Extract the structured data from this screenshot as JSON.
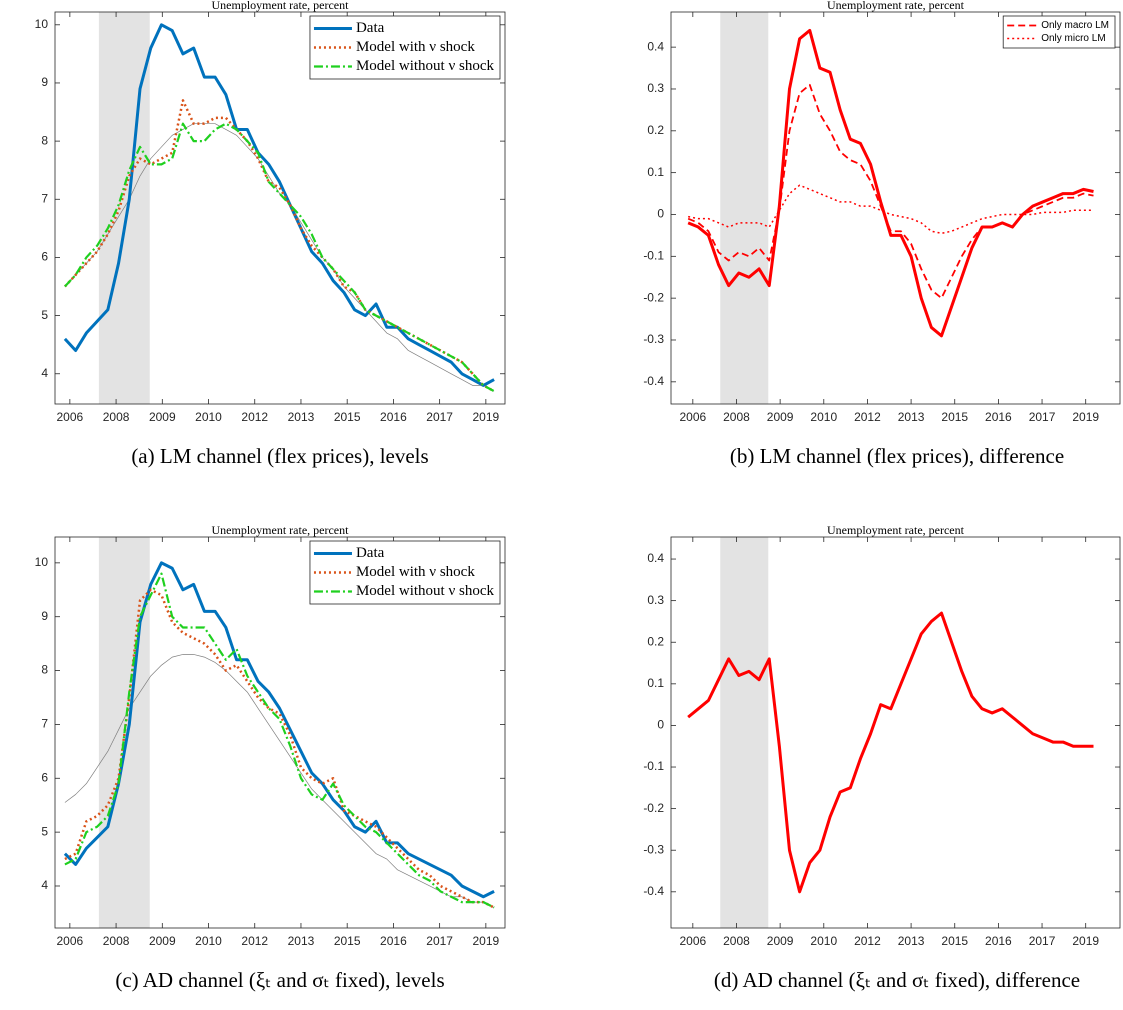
{
  "chart_data": [
    {
      "type": "line",
      "title": "Unemployment rate, percent",
      "caption": "(a) LM channel (flex prices), levels",
      "x": [
        2006.55,
        2006.875,
        2007.2,
        2007.525,
        2007.85,
        2008.175,
        2008.5,
        2008.825,
        2009.15,
        2009.475,
        2009.8,
        2010.125,
        2010.45,
        2010.775,
        2011.1,
        2011.425,
        2011.75,
        2012.075,
        2012.4,
        2012.725,
        2013.05,
        2013.375,
        2013.7,
        2014.025,
        2014.35,
        2014.675,
        2015.0,
        2015.325,
        2015.65,
        2015.975,
        2016.3,
        2016.625,
        2016.95,
        2017.275,
        2017.6,
        2017.925,
        2018.25,
        2018.575,
        2018.9,
        2019.225,
        2019.55
      ],
      "series": [
        {
          "values": [
            5.5,
            5.7,
            5.9,
            6.1,
            6.4,
            6.7,
            7.0,
            7.4,
            7.7,
            7.9,
            8.1,
            8.2,
            8.3,
            8.3,
            8.3,
            8.2,
            8.1,
            7.9,
            7.7,
            7.4,
            7.1,
            6.9,
            6.6,
            6.3,
            6.0,
            5.8,
            5.5,
            5.3,
            5.1,
            4.9,
            4.7,
            4.6,
            4.4,
            4.3,
            4.2,
            4.1,
            4.0,
            3.9,
            3.8,
            3.8,
            3.7
          ],
          "color": "#7f7f7f",
          "dash": "solid",
          "width": 0.7
        },
        {
          "name": "Data",
          "color": "#0072bd",
          "dash": "solid",
          "width": 3,
          "values": [
            4.6,
            4.4,
            4.7,
            4.9,
            5.1,
            5.9,
            7.0,
            8.9,
            9.6,
            10.0,
            9.9,
            9.5,
            9.6,
            9.1,
            9.1,
            8.8,
            8.2,
            8.2,
            7.8,
            7.6,
            7.3,
            6.9,
            6.5,
            6.1,
            5.9,
            5.6,
            5.4,
            5.1,
            5.0,
            5.2,
            4.8,
            4.8,
            4.6,
            4.5,
            4.4,
            4.3,
            4.2,
            4.0,
            3.9,
            3.8,
            3.9
          ]
        },
        {
          "name": "Model with ν shock",
          "color": "#d95319",
          "dash": "dot",
          "width": 2.5,
          "values": [
            5.5,
            5.7,
            5.9,
            6.1,
            6.4,
            6.8,
            7.4,
            7.7,
            7.6,
            7.7,
            7.8,
            8.7,
            8.3,
            8.3,
            8.4,
            8.4,
            8.2,
            8.0,
            7.7,
            7.3,
            7.2,
            6.9,
            6.5,
            6.2,
            6.0,
            5.8,
            5.5,
            5.4,
            5.1,
            5.0,
            4.9,
            4.8,
            4.7,
            4.6,
            4.5,
            4.4,
            4.3,
            4.2,
            4.0,
            3.8,
            3.7
          ]
        },
        {
          "name": "Model without ν shock",
          "color": "#1fd01f",
          "dash": "dashdot",
          "width": 2.2,
          "values": [
            5.5,
            5.7,
            6.0,
            6.2,
            6.5,
            6.9,
            7.5,
            7.9,
            7.6,
            7.6,
            7.7,
            8.3,
            8.0,
            8.0,
            8.2,
            8.3,
            8.2,
            8.0,
            7.8,
            7.3,
            7.1,
            6.9,
            6.7,
            6.4,
            6.0,
            5.8,
            5.6,
            5.4,
            5.1,
            5.0,
            4.9,
            4.8,
            4.7,
            4.6,
            4.5,
            4.4,
            4.3,
            4.2,
            4.0,
            3.8,
            3.7
          ]
        }
      ],
      "xlim": [
        2006.25,
        2019.88
      ],
      "ylim": [
        3.48,
        10.22
      ],
      "xticks": [
        {
          "value": 2006.7,
          "label": "2006"
        },
        {
          "value": 2008.1,
          "label": "2008"
        },
        {
          "value": 2009.5,
          "label": "2009"
        },
        {
          "value": 2010.9,
          "label": "2010"
        },
        {
          "value": 2012.3,
          "label": "2012"
        },
        {
          "value": 2013.7,
          "label": "2013"
        },
        {
          "value": 2015.1,
          "label": "2015"
        },
        {
          "value": 2016.5,
          "label": "2016"
        },
        {
          "value": 2017.9,
          "label": "2017"
        },
        {
          "value": 2019.3,
          "label": "2019"
        }
      ],
      "yticks": [
        4,
        5,
        6,
        7,
        8,
        9,
        10
      ],
      "recession": [
        2007.58,
        2009.12
      ],
      "recession_color": "#e3e3e3",
      "legend": "upper right"
    },
    {
      "type": "line",
      "title": "Unemployment rate, percent",
      "caption": "(b) LM channel (flex prices), difference",
      "x": [
        2006.55,
        2006.875,
        2007.2,
        2007.525,
        2007.85,
        2008.175,
        2008.5,
        2008.825,
        2009.15,
        2009.475,
        2009.8,
        2010.125,
        2010.45,
        2010.775,
        2011.1,
        2011.425,
        2011.75,
        2012.075,
        2012.4,
        2012.725,
        2013.05,
        2013.375,
        2013.7,
        2014.025,
        2014.35,
        2014.675,
        2015.0,
        2015.325,
        2015.65,
        2015.975,
        2016.3,
        2016.625,
        2016.95,
        2017.275,
        2017.6,
        2017.925,
        2018.25,
        2018.575,
        2018.9,
        2019.225,
        2019.55
      ],
      "series": [
        {
          "color": "#ff0000",
          "dash": "solid",
          "width": 3,
          "values": [
            -0.02,
            -0.03,
            -0.05,
            -0.12,
            -0.17,
            -0.14,
            -0.15,
            -0.13,
            -0.17,
            0.02,
            0.3,
            0.42,
            0.44,
            0.35,
            0.34,
            0.25,
            0.18,
            0.17,
            0.12,
            0.03,
            -0.05,
            -0.05,
            -0.1,
            -0.2,
            -0.27,
            -0.29,
            -0.22,
            -0.15,
            -0.08,
            -0.03,
            -0.03,
            -0.02,
            -0.03,
            0.0,
            0.02,
            0.03,
            0.04,
            0.05,
            0.05,
            0.06,
            0.055
          ]
        },
        {
          "name": "Only macro LM",
          "color": "#ff0000",
          "dash": "dash",
          "width": 1.8,
          "values": [
            -0.01,
            -0.02,
            -0.04,
            -0.09,
            -0.11,
            -0.09,
            -0.1,
            -0.08,
            -0.11,
            0.01,
            0.2,
            0.29,
            0.31,
            0.24,
            0.2,
            0.15,
            0.13,
            0.12,
            0.08,
            0.02,
            -0.04,
            -0.04,
            -0.07,
            -0.13,
            -0.18,
            -0.2,
            -0.15,
            -0.1,
            -0.06,
            -0.03,
            -0.03,
            -0.02,
            -0.03,
            0.0,
            0.01,
            0.02,
            0.03,
            0.04,
            0.04,
            0.05,
            0.045
          ]
        },
        {
          "name": "Only micro LM",
          "color": "#ff0000",
          "dash": "dot",
          "width": 1.5,
          "values": [
            -0.005,
            -0.01,
            -0.01,
            -0.02,
            -0.03,
            -0.02,
            -0.02,
            -0.02,
            -0.03,
            0.01,
            0.05,
            0.07,
            0.06,
            0.05,
            0.04,
            0.03,
            0.03,
            0.02,
            0.02,
            0.01,
            0.0,
            -0.005,
            -0.01,
            -0.02,
            -0.04,
            -0.045,
            -0.04,
            -0.03,
            -0.02,
            -0.01,
            -0.005,
            0.0,
            0.0,
            0.0,
            0.0,
            0.005,
            0.005,
            0.005,
            0.01,
            0.01,
            0.01
          ]
        }
      ],
      "xlim": [
        2006.0,
        2020.4
      ],
      "ylim": [
        -0.453,
        0.484
      ],
      "xticks": [
        {
          "value": 2006.7,
          "label": "2006"
        },
        {
          "value": 2008.1,
          "label": "2008"
        },
        {
          "value": 2009.5,
          "label": "2009"
        },
        {
          "value": 2010.9,
          "label": "2010"
        },
        {
          "value": 2012.3,
          "label": "2012"
        },
        {
          "value": 2013.7,
          "label": "2013"
        },
        {
          "value": 2015.1,
          "label": "2015"
        },
        {
          "value": 2016.5,
          "label": "2016"
        },
        {
          "value": 2017.9,
          "label": "2017"
        },
        {
          "value": 2019.3,
          "label": "2019"
        }
      ],
      "yticks": [
        -0.4,
        -0.3,
        -0.2,
        -0.1,
        0,
        0.1,
        0.2,
        0.3,
        0.4
      ],
      "recession": [
        2007.58,
        2009.12
      ],
      "recession_color": "#e3e3e3",
      "legend": "upper right"
    },
    {
      "type": "line",
      "title": "Unemployment rate, percent",
      "caption": "(c) AD channel (ξₜ and σₜ fixed), levels",
      "x": [
        2006.55,
        2006.875,
        2007.2,
        2007.525,
        2007.85,
        2008.175,
        2008.5,
        2008.825,
        2009.15,
        2009.475,
        2009.8,
        2010.125,
        2010.45,
        2010.775,
        2011.1,
        2011.425,
        2011.75,
        2012.075,
        2012.4,
        2012.725,
        2013.05,
        2013.375,
        2013.7,
        2014.025,
        2014.35,
        2014.675,
        2015.0,
        2015.325,
        2015.65,
        2015.975,
        2016.3,
        2016.625,
        2016.95,
        2017.275,
        2017.6,
        2017.925,
        2018.25,
        2018.575,
        2018.9,
        2019.225,
        2019.55
      ],
      "series": [
        {
          "values": [
            5.55,
            5.7,
            5.9,
            6.2,
            6.5,
            6.9,
            7.3,
            7.6,
            7.9,
            8.1,
            8.25,
            8.3,
            8.3,
            8.25,
            8.15,
            8.0,
            7.8,
            7.6,
            7.3,
            7.0,
            6.7,
            6.4,
            6.1,
            5.8,
            5.6,
            5.4,
            5.2,
            5.0,
            4.8,
            4.6,
            4.5,
            4.3,
            4.2,
            4.1,
            4.0,
            3.9,
            3.8,
            3.8,
            3.7,
            3.7,
            3.6
          ],
          "color": "#7f7f7f",
          "dash": "solid",
          "width": 0.7
        },
        {
          "name": "Data",
          "color": "#0072bd",
          "dash": "solid",
          "width": 3,
          "values": [
            4.6,
            4.4,
            4.7,
            4.9,
            5.1,
            5.9,
            7.0,
            8.9,
            9.6,
            10.0,
            9.9,
            9.5,
            9.6,
            9.1,
            9.1,
            8.8,
            8.2,
            8.2,
            7.8,
            7.6,
            7.3,
            6.9,
            6.5,
            6.1,
            5.9,
            5.6,
            5.4,
            5.1,
            5.0,
            5.2,
            4.8,
            4.8,
            4.6,
            4.5,
            4.4,
            4.3,
            4.2,
            4.0,
            3.9,
            3.8,
            3.9
          ]
        },
        {
          "name": "Model with ν shock",
          "color": "#d95319",
          "dash": "dot",
          "width": 2.5,
          "values": [
            4.5,
            4.6,
            5.2,
            5.3,
            5.5,
            6.0,
            7.5,
            9.3,
            9.5,
            9.4,
            8.9,
            8.7,
            8.6,
            8.5,
            8.3,
            8.0,
            8.1,
            7.8,
            7.5,
            7.3,
            7.2,
            6.8,
            6.2,
            6.0,
            5.9,
            6.0,
            5.4,
            5.3,
            5.2,
            5.1,
            4.9,
            4.7,
            4.5,
            4.3,
            4.2,
            4.0,
            3.9,
            3.8,
            3.7,
            3.7,
            3.6
          ]
        },
        {
          "name": "Model without ν shock",
          "color": "#1fd01f",
          "dash": "dashdot",
          "width": 2.2,
          "values": [
            4.4,
            4.5,
            5.0,
            5.1,
            5.3,
            5.9,
            7.6,
            9.0,
            9.4,
            9.8,
            9.0,
            8.8,
            8.8,
            8.8,
            8.5,
            8.2,
            8.4,
            7.9,
            7.6,
            7.3,
            7.1,
            6.6,
            6.0,
            5.7,
            5.6,
            5.9,
            5.5,
            5.3,
            5.1,
            5.0,
            4.8,
            4.6,
            4.4,
            4.2,
            4.1,
            3.9,
            3.8,
            3.7,
            3.7,
            3.7,
            3.6
          ]
        }
      ],
      "xlim": [
        2006.25,
        2019.88
      ],
      "ylim": [
        3.22,
        10.48
      ],
      "xticks": [
        {
          "value": 2006.7,
          "label": "2006"
        },
        {
          "value": 2008.1,
          "label": "2008"
        },
        {
          "value": 2009.5,
          "label": "2009"
        },
        {
          "value": 2010.9,
          "label": "2010"
        },
        {
          "value": 2012.3,
          "label": "2012"
        },
        {
          "value": 2013.7,
          "label": "2013"
        },
        {
          "value": 2015.1,
          "label": "2015"
        },
        {
          "value": 2016.5,
          "label": "2016"
        },
        {
          "value": 2017.9,
          "label": "2017"
        },
        {
          "value": 2019.3,
          "label": "2019"
        }
      ],
      "yticks": [
        4,
        5,
        6,
        7,
        8,
        9,
        10
      ],
      "recession": [
        2007.58,
        2009.12
      ],
      "recession_color": "#e3e3e3",
      "legend": "upper right"
    },
    {
      "type": "line",
      "title": "Unemployment rate, percent",
      "caption": "(d) AD channel (ξₜ and σₜ fixed), difference",
      "x": [
        2006.55,
        2006.875,
        2007.2,
        2007.525,
        2007.85,
        2008.175,
        2008.5,
        2008.825,
        2009.15,
        2009.475,
        2009.8,
        2010.125,
        2010.45,
        2010.775,
        2011.1,
        2011.425,
        2011.75,
        2012.075,
        2012.4,
        2012.725,
        2013.05,
        2013.375,
        2013.7,
        2014.025,
        2014.35,
        2014.675,
        2015.0,
        2015.325,
        2015.65,
        2015.975,
        2016.3,
        2016.625,
        2016.95,
        2017.275,
        2017.6,
        2017.925,
        2018.25,
        2018.575,
        2018.9,
        2019.225,
        2019.55
      ],
      "series": [
        {
          "color": "#ff0000",
          "dash": "solid",
          "width": 3,
          "values": [
            0.02,
            0.04,
            0.06,
            0.11,
            0.16,
            0.12,
            0.13,
            0.11,
            0.16,
            -0.05,
            -0.3,
            -0.4,
            -0.33,
            -0.3,
            -0.22,
            -0.16,
            -0.15,
            -0.08,
            -0.02,
            0.05,
            0.04,
            0.1,
            0.16,
            0.22,
            0.25,
            0.27,
            0.2,
            0.13,
            0.07,
            0.04,
            0.03,
            0.04,
            0.02,
            0.0,
            -0.02,
            -0.03,
            -0.04,
            -0.04,
            -0.05,
            -0.05,
            -0.05
          ]
        }
      ],
      "xlim": [
        2006.0,
        2020.4
      ],
      "ylim": [
        -0.487,
        0.453
      ],
      "xticks": [
        {
          "value": 2006.7,
          "label": "2006"
        },
        {
          "value": 2008.1,
          "label": "2008"
        },
        {
          "value": 2009.5,
          "label": "2009"
        },
        {
          "value": 2010.9,
          "label": "2010"
        },
        {
          "value": 2012.3,
          "label": "2012"
        },
        {
          "value": 2013.7,
          "label": "2013"
        },
        {
          "value": 2015.1,
          "label": "2015"
        },
        {
          "value": 2016.5,
          "label": "2016"
        },
        {
          "value": 2017.9,
          "label": "2017"
        },
        {
          "value": 2019.3,
          "label": "2019"
        }
      ],
      "yticks": [
        -0.4,
        -0.3,
        -0.2,
        -0.1,
        0,
        0.1,
        0.2,
        0.3,
        0.4
      ],
      "recession": [
        2007.58,
        2009.12
      ],
      "recession_color": "#e3e3e3"
    }
  ]
}
